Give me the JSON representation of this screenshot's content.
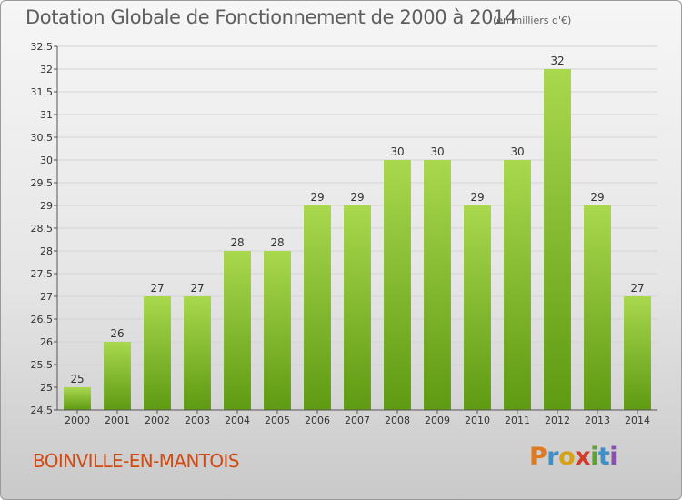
{
  "title": "Dotation Globale de Fonctionnement de 2000 à 2014",
  "subtitle": "(en milliers d'€)",
  "commune": "BOINVILLE-EN-MANTOIS",
  "logo": {
    "letters": [
      "P",
      "r",
      "o",
      "x",
      "i",
      "t",
      "i"
    ],
    "colors": [
      "#e07a1e",
      "#3f8fc8",
      "#d5a21a",
      "#d33a2a",
      "#5aa52e",
      "#3f8fc8",
      "#8a4fb0"
    ]
  },
  "colors": {
    "bar_light": "#a9d84e",
    "bar_dark": "#5e9a12",
    "grid": "#d4d4d4",
    "title": "#5e5e5e",
    "commune": "#d14a14"
  },
  "chart_data": {
    "type": "bar",
    "categories": [
      "2000",
      "2001",
      "2002",
      "2003",
      "2004",
      "2005",
      "2006",
      "2007",
      "2008",
      "2009",
      "2010",
      "2011",
      "2012",
      "2013",
      "2014"
    ],
    "values": [
      25,
      26,
      27,
      27,
      28,
      28,
      29,
      29,
      30,
      30,
      29,
      30,
      32,
      29,
      27
    ],
    "title": "Dotation Globale de Fonctionnement de 2000 à 2014",
    "xlabel": "",
    "ylabel": "",
    "ylim": [
      24.5,
      32.5
    ],
    "yticks": [
      "24.5",
      "25",
      "25.5",
      "26",
      "26.5",
      "27",
      "27.5",
      "28",
      "28.5",
      "29",
      "29.5",
      "30",
      "30.5",
      "31",
      "31.5",
      "32",
      "32.5"
    ],
    "grid": true,
    "legend": "none"
  }
}
